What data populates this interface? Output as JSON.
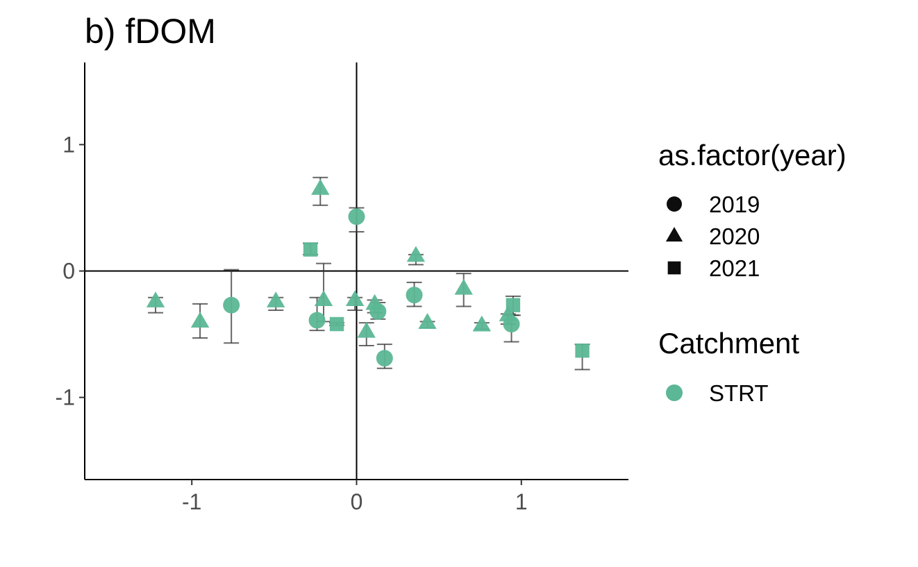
{
  "chart_data": {
    "type": "scatter",
    "title": "b) fDOM",
    "xlabel": "",
    "ylabel": "",
    "xlim": [
      -1.65,
      1.65
    ],
    "ylim": [
      -1.65,
      1.65
    ],
    "x_ticks": [
      -1,
      0,
      1
    ],
    "y_ticks": [
      -1,
      0,
      1
    ],
    "x_tick_labels": [
      "-1",
      "0",
      "1"
    ],
    "y_tick_labels": [
      "-1",
      "0",
      "1"
    ],
    "grid": false,
    "reference_lines": {
      "x": 0,
      "y": 0
    },
    "legend_placement": "right",
    "point_color": "#5BB795",
    "errorbar_color": "#333333",
    "legend": {
      "shape_title": "as.factor(year)",
      "shape_entries": [
        {
          "label": "2019",
          "shape": "circle"
        },
        {
          "label": "2020",
          "shape": "triangle"
        },
        {
          "label": "2021",
          "shape": "square"
        }
      ],
      "color_title": "Catchment",
      "color_entries": [
        {
          "label": "STRT",
          "color": "#5BB795"
        }
      ]
    },
    "series": [
      {
        "name": "2019",
        "shape": "circle",
        "points": [
          {
            "x": -0.76,
            "y": -0.27,
            "ymin": -0.57,
            "ymax": 0.01
          },
          {
            "x": -0.24,
            "y": -0.39,
            "ymin": -0.47,
            "ymax": -0.21
          },
          {
            "x": 0.0,
            "y": 0.43,
            "ymin": 0.31,
            "ymax": 0.5
          },
          {
            "x": 0.13,
            "y": -0.32,
            "ymin": -0.38,
            "ymax": -0.25
          },
          {
            "x": 0.17,
            "y": -0.69,
            "ymin": -0.77,
            "ymax": -0.58
          },
          {
            "x": 0.35,
            "y": -0.19,
            "ymin": -0.28,
            "ymax": -0.09
          },
          {
            "x": 0.94,
            "y": -0.42,
            "ymin": -0.56,
            "ymax": -0.35
          }
        ]
      },
      {
        "name": "2020",
        "shape": "triangle",
        "points": [
          {
            "x": -1.22,
            "y": -0.24,
            "ymin": -0.33,
            "ymax": -0.21
          },
          {
            "x": -0.95,
            "y": -0.4,
            "ymin": -0.53,
            "ymax": -0.26
          },
          {
            "x": -0.49,
            "y": -0.24,
            "ymin": -0.31,
            "ymax": -0.21
          },
          {
            "x": -0.22,
            "y": 0.65,
            "ymin": 0.52,
            "ymax": 0.74
          },
          {
            "x": -0.2,
            "y": -0.23,
            "ymin": -0.4,
            "ymax": 0.06
          },
          {
            "x": -0.01,
            "y": -0.23,
            "ymin": -0.31,
            "ymax": -0.21
          },
          {
            "x": 0.06,
            "y": -0.48,
            "ymin": -0.59,
            "ymax": -0.41
          },
          {
            "x": 0.11,
            "y": -0.26,
            "ymin": -0.33,
            "ymax": -0.23
          },
          {
            "x": 0.36,
            "y": 0.12,
            "ymin": 0.05,
            "ymax": 0.13
          },
          {
            "x": 0.43,
            "y": -0.41,
            "ymin": -0.45,
            "ymax": -0.4
          },
          {
            "x": 0.65,
            "y": -0.14,
            "ymin": -0.28,
            "ymax": -0.02
          },
          {
            "x": 0.76,
            "y": -0.43,
            "ymin": -0.46,
            "ymax": -0.41
          },
          {
            "x": 0.92,
            "y": -0.35,
            "ymin": -0.42,
            "ymax": -0.34
          }
        ]
      },
      {
        "name": "2021",
        "shape": "square",
        "points": [
          {
            "x": -0.28,
            "y": 0.17,
            "ymin": 0.13,
            "ymax": 0.22
          },
          {
            "x": -0.12,
            "y": -0.42,
            "ymin": -0.43,
            "ymax": -0.41
          },
          {
            "x": 0.95,
            "y": -0.27,
            "ymin": -0.35,
            "ymax": -0.2
          },
          {
            "x": 1.37,
            "y": -0.63,
            "ymin": -0.78,
            "ymax": -0.58
          }
        ]
      }
    ]
  }
}
